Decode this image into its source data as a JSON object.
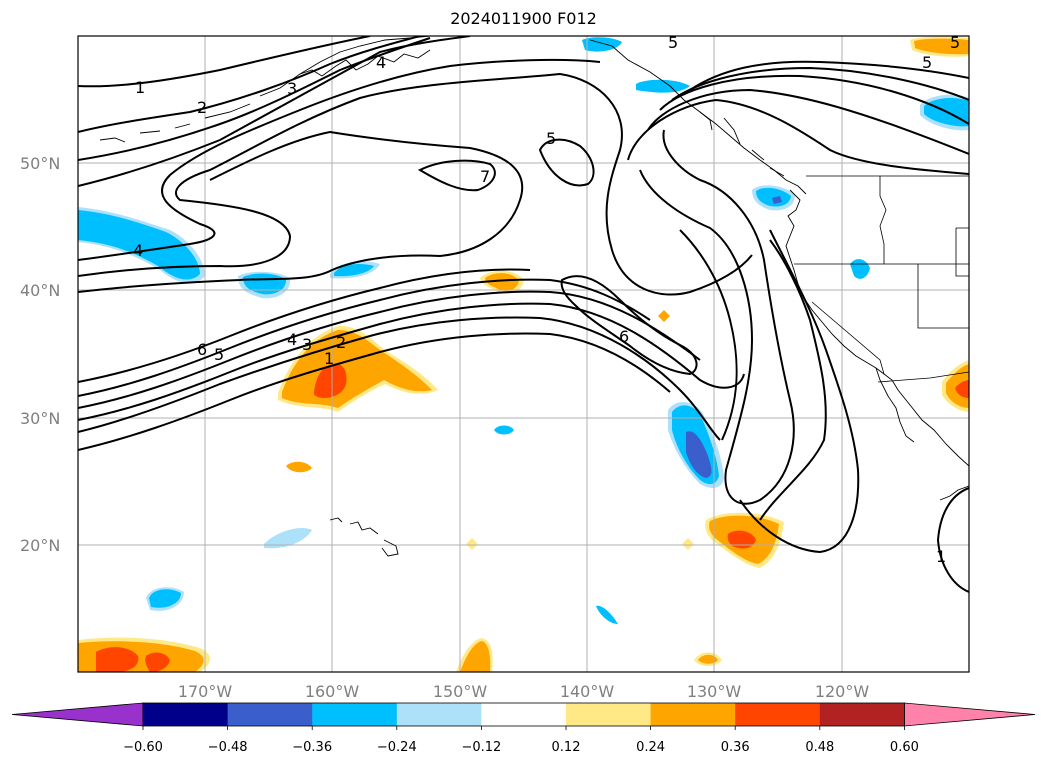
{
  "title": "2024011900 F012",
  "map": {
    "lat_labels": [
      "50°N",
      "40°N",
      "30°N",
      "20°N"
    ],
    "lon_labels": [
      "170°W",
      "160°W",
      "150°W",
      "140°W",
      "130°W",
      "120°W"
    ],
    "contour_labels": [
      "1",
      "2",
      "3",
      "4",
      "5",
      "5",
      "5",
      "5",
      "7",
      "4",
      "6",
      "5",
      "4",
      "3",
      "2",
      "1",
      "6",
      "1"
    ]
  },
  "colorbar": {
    "tick_labels": [
      "−0.60",
      "−0.48",
      "−0.36",
      "−0.24",
      "−0.12",
      "0.12",
      "0.24",
      "0.36",
      "0.48",
      "0.60"
    ],
    "colors": {
      "under": "#9932CC",
      "bins": [
        "#00008B",
        "#3A5FCD",
        "#00BFFF",
        "#ADE1FA",
        "#FFFFFF",
        "#FFE987",
        "#FFA500",
        "#FF4500",
        "#B22222"
      ],
      "over": "#FF82AB"
    }
  }
}
